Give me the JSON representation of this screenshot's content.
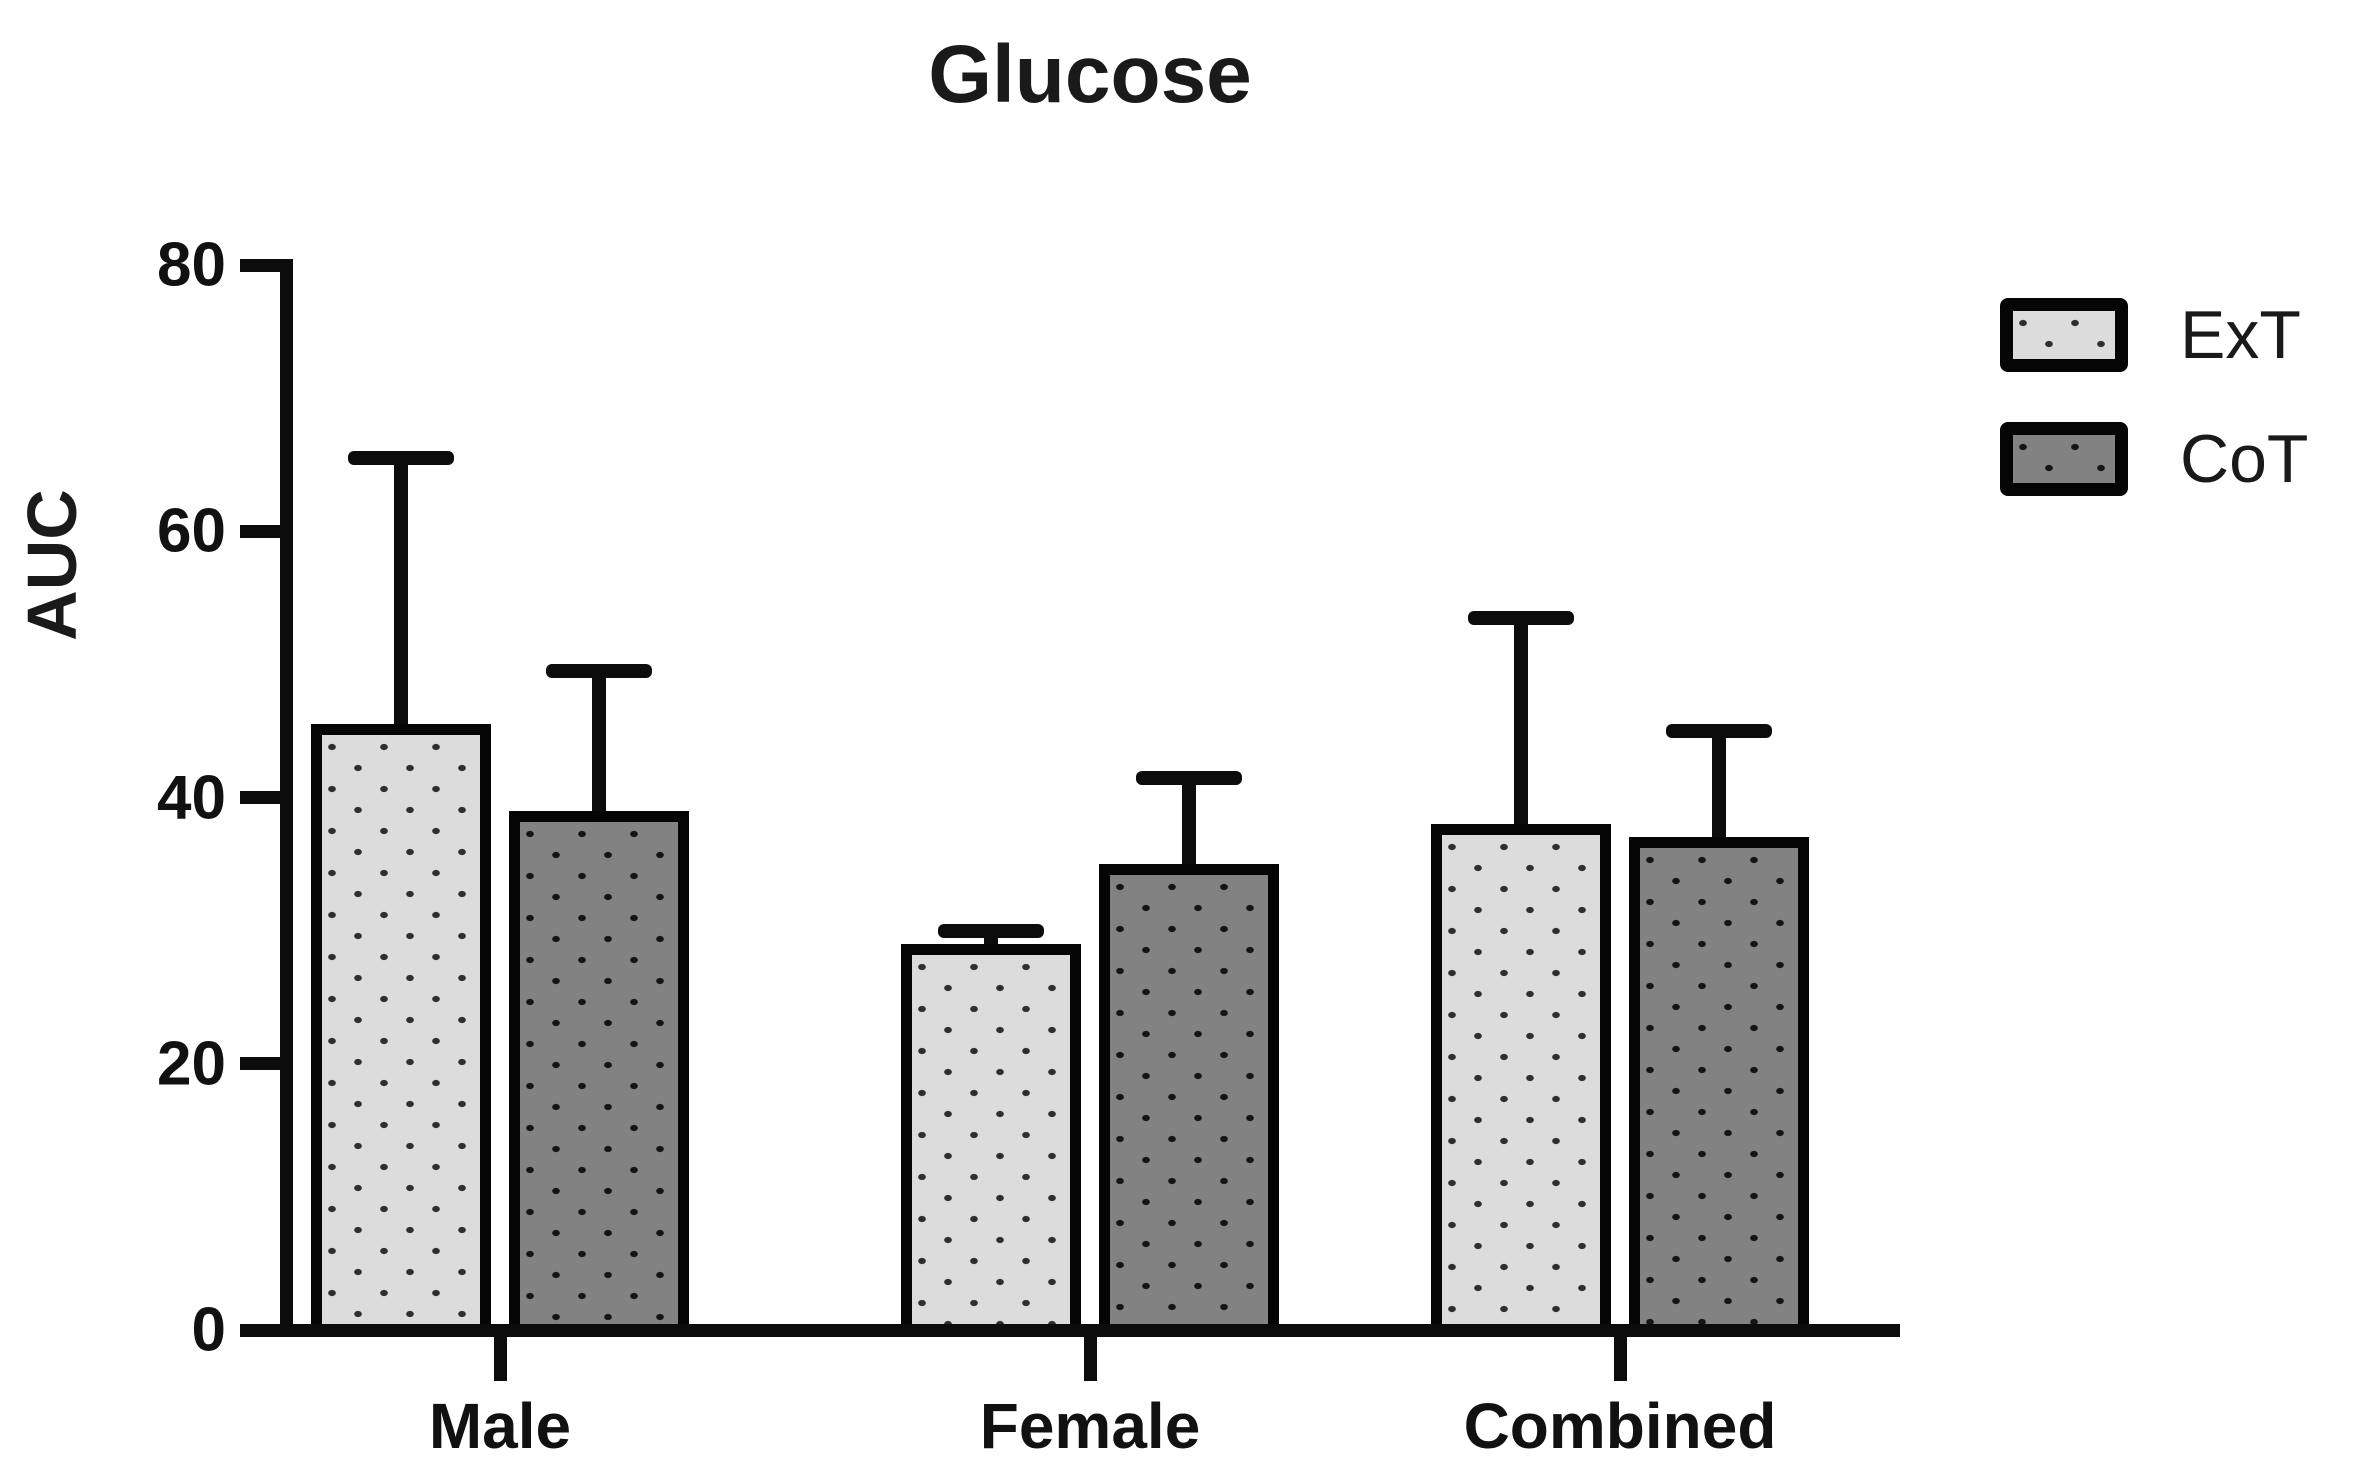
{
  "chart_data": {
    "type": "bar",
    "title": "Glucose",
    "xlabel": "",
    "ylabel": "AUC",
    "ylim": [
      0,
      80
    ],
    "yticks": [
      0,
      20,
      40,
      60,
      80
    ],
    "grid": false,
    "legend_position": "top-right",
    "error_bars": "upper-only",
    "categories": [
      "Male",
      "Female",
      "Combined"
    ],
    "series": [
      {
        "name": "ExT",
        "fill_color": "#dcdcdc",
        "dot_color": "#2e2e2e",
        "values": [
          45.5,
          29,
          38
        ],
        "errors_up": [
          20,
          1,
          15.5
        ],
        "error_tops": [
          65.5,
          30,
          53.5
        ]
      },
      {
        "name": "CoT",
        "fill_color": "#828282",
        "dot_color": "#141414",
        "values": [
          39,
          35,
          37
        ],
        "errors_up": [
          10.5,
          6.5,
          8
        ],
        "error_tops": [
          49.5,
          41.5,
          45
        ]
      }
    ],
    "axis_color": "#0c0c0c",
    "text_color": "#111111"
  }
}
